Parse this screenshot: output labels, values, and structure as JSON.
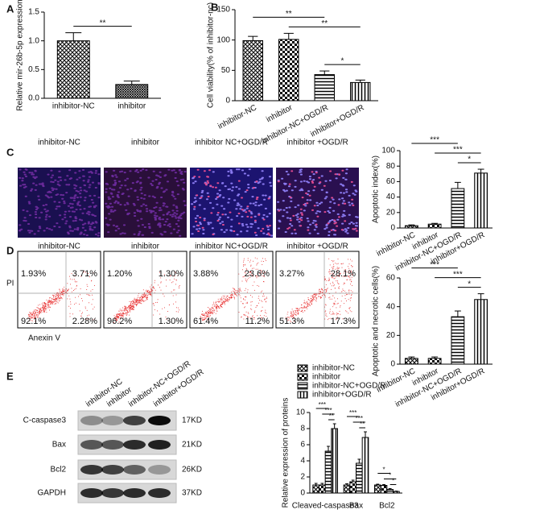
{
  "panel_labels": [
    "A",
    "B",
    "C",
    "D",
    "E"
  ],
  "chart_data": [
    {
      "type": "bar",
      "y_label": "Relative mir-26b-5p expression",
      "categories": [
        "inhibitor-NC",
        "inhibitor"
      ],
      "values": [
        1.0,
        0.24
      ],
      "errors": [
        0.14,
        0.06
      ],
      "ylim": [
        0,
        1.5
      ],
      "yticks": [
        {
          "value": 0,
          "label": "0.0"
        },
        0.5,
        {
          "value": 1,
          "label": "1.0"
        },
        1.5
      ],
      "annotations": [
        {
          "text": "**",
          "between": [
            0,
            1
          ]
        }
      ]
    },
    {
      "type": "bar",
      "y_label": "Cell viability(% of inhibitor-nc)",
      "categories": [
        "inhibitor-NC",
        "inhibitor",
        "inhibitor-NC+OGD/R",
        "inhibitor+OGD/R"
      ],
      "values": [
        99,
        101,
        43,
        30
      ],
      "errors": [
        7,
        10,
        6,
        4
      ],
      "ylim": [
        0,
        150
      ],
      "yticks": [
        0,
        50,
        100,
        150
      ],
      "annotations": [
        {
          "text": "**",
          "between": [
            0,
            2
          ]
        },
        {
          "text": "**",
          "between": [
            1,
            3
          ]
        },
        {
          "text": "*",
          "between": [
            2,
            3
          ]
        }
      ]
    },
    {
      "type": "bar",
      "y_label": "Apoptotic index(%)",
      "categories": [
        "inhibitor-NC",
        "inhibitor",
        "inhibitor-NC+OGD/R",
        "inhibitor+OGD/R"
      ],
      "values": [
        3,
        5,
        51,
        71
      ],
      "errors": [
        1,
        1,
        8,
        5
      ],
      "ylim": [
        0,
        100
      ],
      "yticks": [
        0,
        20,
        40,
        60,
        80,
        100
      ],
      "annotations": [
        {
          "text": "***",
          "between": [
            0,
            2
          ]
        },
        {
          "text": "***",
          "between": [
            1,
            3
          ]
        },
        {
          "text": "*",
          "between": [
            2,
            3
          ]
        }
      ]
    },
    {
      "type": "bar",
      "y_label": "Apoptotic and necrotic cells(%)",
      "categories": [
        "inhibitor-NC",
        "inhibitor",
        "inhibitor-NC+OGD/R",
        "inhibitor+OGD/R"
      ],
      "values": [
        4,
        4,
        33,
        45
      ],
      "errors": [
        1,
        1,
        4,
        4
      ],
      "ylim": [
        0,
        60
      ],
      "yticks": [
        0,
        20,
        40,
        60
      ],
      "annotations": [
        {
          "text": "***",
          "between": [
            0,
            2
          ]
        },
        {
          "text": "***",
          "between": [
            1,
            3
          ]
        },
        {
          "text": "*",
          "between": [
            2,
            3
          ]
        }
      ]
    },
    {
      "type": "bar",
      "y_label": "Relative expression of proteins",
      "categories": [
        "Cleaved-caspase3",
        "Bax",
        "Bcl2"
      ],
      "series": [
        {
          "name": "inhibitor-NC",
          "values": [
            1.0,
            1.0,
            1.0
          ],
          "errors": [
            0.2,
            0.15,
            0.1
          ]
        },
        {
          "name": "inhibitor",
          "values": [
            1.0,
            1.4,
            0.95
          ],
          "errors": [
            0.2,
            0.2,
            0.1
          ]
        },
        {
          "name": "inhibitor-NC+OGD/R",
          "values": [
            5.2,
            3.7,
            0.45
          ],
          "errors": [
            0.6,
            0.5,
            0.1
          ]
        },
        {
          "name": "inhibitor+OGD/R",
          "values": [
            8.0,
            6.9,
            0.2
          ],
          "errors": [
            0.6,
            0.7,
            0.05
          ]
        }
      ],
      "ylim": [
        0,
        10
      ],
      "yticks": [
        0,
        2,
        4,
        6,
        8,
        10
      ],
      "annotations": [
        {
          "text": "***",
          "category": 0,
          "between": [
            0,
            2
          ]
        },
        {
          "text": "***",
          "category": 0,
          "between": [
            1,
            3
          ]
        },
        {
          "text": "**",
          "category": 0,
          "between": [
            2,
            3
          ]
        },
        {
          "text": "***",
          "category": 1,
          "between": [
            0,
            2
          ]
        },
        {
          "text": "***",
          "category": 1,
          "between": [
            1,
            3
          ]
        },
        {
          "text": "**",
          "category": 1,
          "between": [
            2,
            3
          ]
        },
        {
          "text": "*",
          "category": 2,
          "between": [
            0,
            2
          ]
        },
        {
          "text": "*",
          "category": 2,
          "between": [
            1,
            3
          ]
        },
        {
          "text": "*",
          "category": 2,
          "between": [
            2,
            3
          ]
        }
      ]
    }
  ],
  "micrographs": {
    "titles": [
      "inhibitor-NC",
      "inhibitor",
      "inhibitor NC+OGD/R",
      "inhibitor +OGD/R"
    ]
  },
  "flow_cytometry": {
    "titles": [
      "inhibitor-NC",
      "inhibitor",
      "inhibitor NC+OGD/R",
      "inhibitor +OGD/R"
    ],
    "y_label": "PI",
    "x_label": "Anexin V",
    "quadrants": [
      [
        "1.93%",
        "3.71%",
        "92.1%",
        "2.28%"
      ],
      [
        "1.20%",
        "1.30%",
        "96.2%",
        "1.30%"
      ],
      [
        "3.88%",
        "23.6%",
        "61.4%",
        "11.2%"
      ],
      [
        "3.27%",
        "28.1%",
        "51.3%",
        "17.3%"
      ]
    ]
  },
  "western_blot": {
    "lanes": [
      "inhibitor-NC",
      "inhibitor",
      "inhibitor-NC+OGD/R",
      "inhibitor+OGD/R"
    ],
    "proteins": [
      "C-caspase3",
      "Bax",
      "Bcl2",
      "GAPDH"
    ],
    "sizes": [
      "17KD",
      "21KD",
      "26KD",
      "37KD"
    ]
  }
}
